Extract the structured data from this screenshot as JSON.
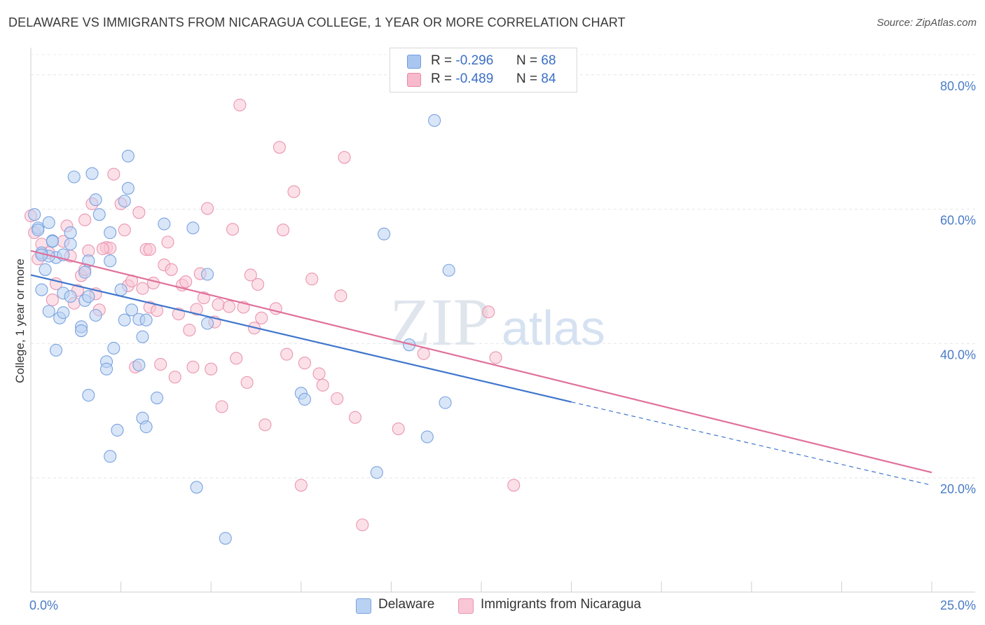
{
  "title": "DELAWARE VS IMMIGRANTS FROM NICARAGUA COLLEGE, 1 YEAR OR MORE CORRELATION CHART",
  "source": "Source: ZipAtlas.com",
  "watermark": {
    "zip": "ZIP",
    "atlas": "atlas"
  },
  "legend_top": [
    {
      "r_label": "R =",
      "r_value": "-0.296",
      "n_label": "N =",
      "n_value": "68",
      "color": "#a9c6f0",
      "border": "#6f9ee0"
    },
    {
      "r_label": "R =",
      "r_value": "-0.489",
      "n_label": "N =",
      "n_value": "84",
      "color": "#f7b9cb",
      "border": "#e889a6"
    }
  ],
  "legend_bottom": [
    {
      "label": "Delaware",
      "color": "#b9d2f3",
      "border": "#7aa3e0"
    },
    {
      "label": "Immigrants from Nicaragua",
      "color": "#f9c6d5",
      "border": "#e996b0"
    }
  ],
  "chart_data": {
    "type": "scatter",
    "title": "DELAWARE VS IMMIGRANTS FROM NICARAGUA COLLEGE, 1 YEAR OR MORE CORRELATION CHART",
    "xlabel": "",
    "ylabel": "College, 1 year or more",
    "xlim": [
      0,
      25
    ],
    "ylim": [
      3,
      83
    ],
    "x_tick_labels": [
      "0.0%",
      "25.0%"
    ],
    "y_ticks": [
      20,
      40,
      60,
      80
    ],
    "y_tick_labels": [
      "20.0%",
      "40.0%",
      "60.0%",
      "80.0%"
    ],
    "series": [
      {
        "name": "Delaware",
        "color": "#7aa3e0",
        "fill": "#b9d2f3",
        "trend": {
          "x": [
            0,
            15
          ],
          "y": [
            50.2,
            31.3
          ]
        },
        "trend_dashed": {
          "x": [
            15,
            25
          ],
          "y": [
            31.3,
            18.9
          ]
        },
        "points": [
          [
            0.1,
            59.2
          ],
          [
            0.2,
            57.2
          ],
          [
            0.5,
            58.0
          ],
          [
            0.6,
            55.3
          ],
          [
            0.7,
            52.8
          ],
          [
            0.4,
            51.0
          ],
          [
            0.3,
            53.5
          ],
          [
            0.5,
            53.0
          ],
          [
            0.9,
            53.2
          ],
          [
            0.3,
            48.0
          ],
          [
            0.9,
            47.5
          ],
          [
            1.1,
            54.8
          ],
          [
            1.1,
            56.5
          ],
          [
            1.1,
            47.0
          ],
          [
            1.5,
            50.6
          ],
          [
            1.6,
            52.3
          ],
          [
            0.5,
            44.8
          ],
          [
            0.8,
            43.8
          ],
          [
            0.7,
            39.0
          ],
          [
            1.4,
            42.5
          ],
          [
            1.4,
            41.9
          ],
          [
            1.8,
            44.2
          ],
          [
            1.5,
            46.4
          ],
          [
            1.6,
            47.0
          ],
          [
            1.2,
            64.8
          ],
          [
            1.7,
            65.3
          ],
          [
            1.8,
            61.4
          ],
          [
            1.9,
            59.2
          ],
          [
            2.2,
            56.5
          ],
          [
            2.2,
            52.3
          ],
          [
            2.5,
            48.0
          ],
          [
            2.6,
            61.2
          ],
          [
            2.7,
            63.1
          ],
          [
            2.7,
            67.9
          ],
          [
            2.6,
            43.5
          ],
          [
            2.8,
            45.0
          ],
          [
            3.0,
            43.6
          ],
          [
            3.2,
            43.5
          ],
          [
            3.1,
            41.0
          ],
          [
            2.3,
            39.3
          ],
          [
            2.1,
            37.3
          ],
          [
            2.1,
            36.2
          ],
          [
            3.0,
            36.8
          ],
          [
            1.6,
            32.3
          ],
          [
            3.7,
            57.8
          ],
          [
            4.5,
            57.2
          ],
          [
            4.9,
            50.3
          ],
          [
            4.9,
            43.0
          ],
          [
            3.5,
            31.9
          ],
          [
            3.1,
            28.9
          ],
          [
            3.2,
            27.6
          ],
          [
            2.4,
            27.1
          ],
          [
            2.2,
            23.2
          ],
          [
            4.6,
            18.6
          ],
          [
            5.4,
            11.0
          ],
          [
            7.5,
            32.6
          ],
          [
            7.6,
            31.7
          ],
          [
            9.6,
            20.8
          ],
          [
            9.8,
            56.3
          ],
          [
            10.5,
            39.8
          ],
          [
            11.2,
            73.2
          ],
          [
            11.5,
            31.2
          ],
          [
            11.0,
            26.1
          ],
          [
            11.6,
            50.9
          ],
          [
            0.2,
            56.9
          ],
          [
            0.3,
            53.2
          ],
          [
            0.6,
            55.2
          ],
          [
            0.9,
            44.6
          ]
        ]
      },
      {
        "name": "Immigrants from Nicaragua",
        "color": "#e996b0",
        "fill": "#f9c6d5",
        "trend": {
          "x": [
            0,
            25
          ],
          "y": [
            53.8,
            20.8
          ]
        },
        "points": [
          [
            0.0,
            59.0
          ],
          [
            0.1,
            56.5
          ],
          [
            0.3,
            54.8
          ],
          [
            0.5,
            53.5
          ],
          [
            0.6,
            46.5
          ],
          [
            0.9,
            55.2
          ],
          [
            1.0,
            57.5
          ],
          [
            1.1,
            53.0
          ],
          [
            1.2,
            46.0
          ],
          [
            1.3,
            47.9
          ],
          [
            1.4,
            50.1
          ],
          [
            1.5,
            51.0
          ],
          [
            1.6,
            53.8
          ],
          [
            1.7,
            60.8
          ],
          [
            1.8,
            47.4
          ],
          [
            1.9,
            45.0
          ],
          [
            2.1,
            54.3
          ],
          [
            2.2,
            54.2
          ],
          [
            2.3,
            65.2
          ],
          [
            2.5,
            60.8
          ],
          [
            2.6,
            56.9
          ],
          [
            2.7,
            48.6
          ],
          [
            2.8,
            49.3
          ],
          [
            2.9,
            36.5
          ],
          [
            3.0,
            59.5
          ],
          [
            3.2,
            54.0
          ],
          [
            3.3,
            54.0
          ],
          [
            3.3,
            45.4
          ],
          [
            3.4,
            49.0
          ],
          [
            3.5,
            44.9
          ],
          [
            3.6,
            36.9
          ],
          [
            3.7,
            51.7
          ],
          [
            3.8,
            55.1
          ],
          [
            3.9,
            51.0
          ],
          [
            4.0,
            35.0
          ],
          [
            4.2,
            48.7
          ],
          [
            4.3,
            49.2
          ],
          [
            4.4,
            42.0
          ],
          [
            4.5,
            36.5
          ],
          [
            4.6,
            45.1
          ],
          [
            4.7,
            50.4
          ],
          [
            4.8,
            46.8
          ],
          [
            4.9,
            60.1
          ],
          [
            5.0,
            36.2
          ],
          [
            5.1,
            43.2
          ],
          [
            5.2,
            45.8
          ],
          [
            5.3,
            30.6
          ],
          [
            5.5,
            45.5
          ],
          [
            5.6,
            57.0
          ],
          [
            5.7,
            37.8
          ],
          [
            5.8,
            75.5
          ],
          [
            5.9,
            45.4
          ],
          [
            6.0,
            34.2
          ],
          [
            6.1,
            50.2
          ],
          [
            6.2,
            42.3
          ],
          [
            6.3,
            48.8
          ],
          [
            6.4,
            43.8
          ],
          [
            6.5,
            27.9
          ],
          [
            6.8,
            45.2
          ],
          [
            6.9,
            69.2
          ],
          [
            7.0,
            56.9
          ],
          [
            7.1,
            38.4
          ],
          [
            7.3,
            62.6
          ],
          [
            7.5,
            18.9
          ],
          [
            7.6,
            37.1
          ],
          [
            7.8,
            49.6
          ],
          [
            8.0,
            35.5
          ],
          [
            8.1,
            33.8
          ],
          [
            8.5,
            31.8
          ],
          [
            8.6,
            47.1
          ],
          [
            8.7,
            67.7
          ],
          [
            9.0,
            29.0
          ],
          [
            9.2,
            13.0
          ],
          [
            10.2,
            27.3
          ],
          [
            10.9,
            38.5
          ],
          [
            12.7,
            44.7
          ],
          [
            12.9,
            37.9
          ],
          [
            13.4,
            18.9
          ],
          [
            0.2,
            52.6
          ],
          [
            0.7,
            48.9
          ],
          [
            1.5,
            58.4
          ],
          [
            2.0,
            54.1
          ],
          [
            3.1,
            48.2
          ],
          [
            4.1,
            44.4
          ]
        ]
      }
    ]
  }
}
